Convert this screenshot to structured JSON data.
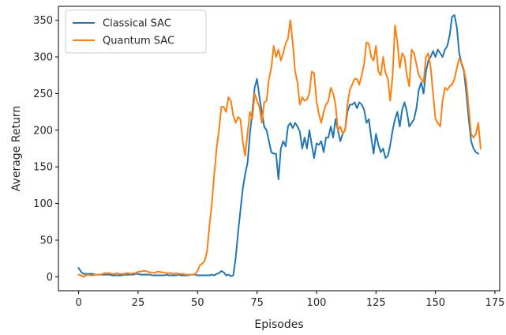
{
  "chart_data": {
    "type": "line",
    "xlabel": "Episodes",
    "ylabel": "Average Return",
    "xlim": [
      -8.5,
      177
    ],
    "ylim": [
      -19,
      369
    ],
    "xticks": [
      0,
      25,
      50,
      75,
      100,
      125,
      150,
      175
    ],
    "yticks": [
      0,
      50,
      100,
      150,
      200,
      250,
      300,
      350
    ],
    "legend_position": "top-left",
    "grid": false,
    "series": [
      {
        "name": "Classical SAC",
        "color": "#1f77b4",
        "points": [
          [
            0,
            12
          ],
          [
            1,
            7
          ],
          [
            2,
            4
          ],
          [
            3,
            4
          ],
          [
            4,
            4
          ],
          [
            5,
            4
          ],
          [
            6,
            4
          ],
          [
            7,
            3
          ],
          [
            8,
            3
          ],
          [
            9,
            3
          ],
          [
            10,
            3
          ],
          [
            11,
            3
          ],
          [
            12,
            3
          ],
          [
            13,
            3
          ],
          [
            14,
            2
          ],
          [
            15,
            2
          ],
          [
            16,
            2
          ],
          [
            17,
            2
          ],
          [
            18,
            2
          ],
          [
            19,
            3
          ],
          [
            20,
            3
          ],
          [
            21,
            3
          ],
          [
            22,
            3
          ],
          [
            23,
            3
          ],
          [
            24,
            4
          ],
          [
            25,
            4
          ],
          [
            26,
            3
          ],
          [
            27,
            3
          ],
          [
            28,
            3
          ],
          [
            29,
            3
          ],
          [
            30,
            3
          ],
          [
            31,
            2
          ],
          [
            32,
            2
          ],
          [
            33,
            2
          ],
          [
            34,
            2
          ],
          [
            35,
            2
          ],
          [
            36,
            2
          ],
          [
            37,
            3
          ],
          [
            38,
            2
          ],
          [
            39,
            2
          ],
          [
            40,
            2
          ],
          [
            41,
            2
          ],
          [
            42,
            3
          ],
          [
            43,
            2
          ],
          [
            44,
            2
          ],
          [
            45,
            2
          ],
          [
            46,
            2
          ],
          [
            47,
            3
          ],
          [
            48,
            3
          ],
          [
            49,
            3
          ],
          [
            50,
            2
          ],
          [
            51,
            2
          ],
          [
            52,
            2
          ],
          [
            53,
            2
          ],
          [
            54,
            2
          ],
          [
            55,
            2
          ],
          [
            56,
            3
          ],
          [
            57,
            2
          ],
          [
            58,
            4
          ],
          [
            59,
            5
          ],
          [
            60,
            8
          ],
          [
            61,
            6
          ],
          [
            62,
            2
          ],
          [
            63,
            3
          ],
          [
            64,
            1
          ],
          [
            65,
            2
          ],
          [
            66,
            25
          ],
          [
            67,
            60
          ],
          [
            68,
            90
          ],
          [
            69,
            120
          ],
          [
            70,
            140
          ],
          [
            71,
            155
          ],
          [
            72,
            195
          ],
          [
            73,
            225
          ],
          [
            74,
            258
          ],
          [
            75,
            270
          ],
          [
            76,
            245
          ],
          [
            77,
            225
          ],
          [
            78,
            205
          ],
          [
            79,
            200
          ],
          [
            80,
            185
          ],
          [
            81,
            170
          ],
          [
            82,
            168
          ],
          [
            83,
            168
          ],
          [
            84,
            133
          ],
          [
            85,
            175
          ],
          [
            86,
            185
          ],
          [
            87,
            178
          ],
          [
            88,
            205
          ],
          [
            89,
            210
          ],
          [
            90,
            203
          ],
          [
            91,
            210
          ],
          [
            92,
            205
          ],
          [
            93,
            198
          ],
          [
            94,
            175
          ],
          [
            95,
            190
          ],
          [
            96,
            175
          ],
          [
            97,
            200
          ],
          [
            98,
            180
          ],
          [
            99,
            162
          ],
          [
            100,
            182
          ],
          [
            101,
            180
          ],
          [
            102,
            185
          ],
          [
            103,
            170
          ],
          [
            104,
            190
          ],
          [
            105,
            190
          ],
          [
            106,
            205
          ],
          [
            107,
            190
          ],
          [
            108,
            215
          ],
          [
            109,
            200
          ],
          [
            110,
            185
          ],
          [
            111,
            195
          ],
          [
            112,
            200
          ],
          [
            113,
            225
          ],
          [
            114,
            235
          ],
          [
            115,
            235
          ],
          [
            116,
            238
          ],
          [
            117,
            230
          ],
          [
            118,
            238
          ],
          [
            119,
            235
          ],
          [
            120,
            228
          ],
          [
            121,
            210
          ],
          [
            122,
            215
          ],
          [
            123,
            190
          ],
          [
            124,
            168
          ],
          [
            125,
            195
          ],
          [
            126,
            180
          ],
          [
            127,
            170
          ],
          [
            128,
            175
          ],
          [
            129,
            162
          ],
          [
            130,
            165
          ],
          [
            131,
            180
          ],
          [
            132,
            200
          ],
          [
            133,
            215
          ],
          [
            134,
            225
          ],
          [
            135,
            205
          ],
          [
            136,
            228
          ],
          [
            137,
            238
          ],
          [
            138,
            225
          ],
          [
            139,
            205
          ],
          [
            140,
            210
          ],
          [
            141,
            215
          ],
          [
            142,
            230
          ],
          [
            143,
            255
          ],
          [
            144,
            265
          ],
          [
            145,
            250
          ],
          [
            146,
            280
          ],
          [
            147,
            295
          ],
          [
            148,
            300
          ],
          [
            149,
            308
          ],
          [
            150,
            300
          ],
          [
            151,
            310
          ],
          [
            152,
            305
          ],
          [
            153,
            300
          ],
          [
            154,
            310
          ],
          [
            155,
            315
          ],
          [
            156,
            330
          ],
          [
            157,
            355
          ],
          [
            158,
            357
          ],
          [
            159,
            340
          ],
          [
            160,
            305
          ],
          [
            161,
            290
          ],
          [
            162,
            280
          ],
          [
            163,
            250
          ],
          [
            164,
            215
          ],
          [
            165,
            185
          ],
          [
            166,
            175
          ],
          [
            167,
            170
          ],
          [
            168,
            168
          ]
        ]
      },
      {
        "name": "Quantum SAC",
        "color": "#ff7f0e",
        "points": [
          [
            0,
            3
          ],
          [
            1,
            2
          ],
          [
            2,
            0
          ],
          [
            3,
            2
          ],
          [
            4,
            3
          ],
          [
            5,
            2
          ],
          [
            6,
            2
          ],
          [
            7,
            3
          ],
          [
            8,
            3
          ],
          [
            9,
            3
          ],
          [
            10,
            4
          ],
          [
            11,
            5
          ],
          [
            12,
            5
          ],
          [
            13,
            5
          ],
          [
            14,
            4
          ],
          [
            15,
            4
          ],
          [
            16,
            5
          ],
          [
            17,
            4
          ],
          [
            18,
            4
          ],
          [
            19,
            4
          ],
          [
            20,
            5
          ],
          [
            21,
            5
          ],
          [
            22,
            4
          ],
          [
            23,
            5
          ],
          [
            24,
            5
          ],
          [
            25,
            7
          ],
          [
            26,
            7
          ],
          [
            27,
            8
          ],
          [
            28,
            8
          ],
          [
            29,
            7
          ],
          [
            30,
            6
          ],
          [
            31,
            6
          ],
          [
            32,
            5
          ],
          [
            33,
            7
          ],
          [
            34,
            7
          ],
          [
            35,
            6
          ],
          [
            36,
            6
          ],
          [
            37,
            5
          ],
          [
            38,
            5
          ],
          [
            39,
            5
          ],
          [
            40,
            4
          ],
          [
            41,
            5
          ],
          [
            42,
            4
          ],
          [
            43,
            4
          ],
          [
            44,
            4
          ],
          [
            45,
            3
          ],
          [
            46,
            3
          ],
          [
            47,
            3
          ],
          [
            48,
            3
          ],
          [
            49,
            4
          ],
          [
            50,
            8
          ],
          [
            51,
            16
          ],
          [
            52,
            18
          ],
          [
            53,
            22
          ],
          [
            54,
            35
          ],
          [
            55,
            70
          ],
          [
            56,
            100
          ],
          [
            57,
            140
          ],
          [
            58,
            175
          ],
          [
            59,
            200
          ],
          [
            60,
            232
          ],
          [
            61,
            232
          ],
          [
            62,
            225
          ],
          [
            63,
            245
          ],
          [
            64,
            240
          ],
          [
            65,
            220
          ],
          [
            66,
            210
          ],
          [
            67,
            218
          ],
          [
            68,
            215
          ],
          [
            69,
            185
          ],
          [
            70,
            165
          ],
          [
            71,
            195
          ],
          [
            72,
            225
          ],
          [
            73,
            215
          ],
          [
            74,
            250
          ],
          [
            75,
            240
          ],
          [
            76,
            232
          ],
          [
            77,
            210
          ],
          [
            78,
            238
          ],
          [
            79,
            240
          ],
          [
            80,
            270
          ],
          [
            81,
            285
          ],
          [
            82,
            315
          ],
          [
            83,
            300
          ],
          [
            84,
            310
          ],
          [
            85,
            295
          ],
          [
            86,
            305
          ],
          [
            87,
            318
          ],
          [
            88,
            325
          ],
          [
            89,
            350
          ],
          [
            90,
            320
          ],
          [
            91,
            280
          ],
          [
            92,
            265
          ],
          [
            93,
            235
          ],
          [
            94,
            245
          ],
          [
            95,
            240
          ],
          [
            96,
            242
          ],
          [
            97,
            250
          ],
          [
            98,
            280
          ],
          [
            99,
            278
          ],
          [
            100,
            240
          ],
          [
            101,
            222
          ],
          [
            102,
            210
          ],
          [
            103,
            225
          ],
          [
            104,
            235
          ],
          [
            105,
            240
          ],
          [
            106,
            258
          ],
          [
            107,
            250
          ],
          [
            108,
            235
          ],
          [
            109,
            200
          ],
          [
            110,
            205
          ],
          [
            111,
            195
          ],
          [
            112,
            200
          ],
          [
            113,
            235
          ],
          [
            114,
            255
          ],
          [
            115,
            262
          ],
          [
            116,
            270
          ],
          [
            117,
            270
          ],
          [
            118,
            262
          ],
          [
            119,
            275
          ],
          [
            120,
            290
          ],
          [
            121,
            320
          ],
          [
            122,
            318
          ],
          [
            123,
            300
          ],
          [
            124,
            295
          ],
          [
            125,
            315
          ],
          [
            126,
            280
          ],
          [
            127,
            275
          ],
          [
            128,
            300
          ],
          [
            129,
            278
          ],
          [
            130,
            270
          ],
          [
            131,
            240
          ],
          [
            132,
            275
          ],
          [
            133,
            343
          ],
          [
            134,
            320
          ],
          [
            135,
            285
          ],
          [
            136,
            305
          ],
          [
            137,
            300
          ],
          [
            138,
            275
          ],
          [
            139,
            260
          ],
          [
            140,
            310
          ],
          [
            141,
            305
          ],
          [
            142,
            290
          ],
          [
            143,
            275
          ],
          [
            144,
            270
          ],
          [
            145,
            265
          ],
          [
            146,
            300
          ],
          [
            147,
            305
          ],
          [
            148,
            285
          ],
          [
            149,
            250
          ],
          [
            150,
            215
          ],
          [
            151,
            210
          ],
          [
            152,
            205
          ],
          [
            153,
            240
          ],
          [
            154,
            258
          ],
          [
            155,
            255
          ],
          [
            156,
            260
          ],
          [
            157,
            262
          ],
          [
            158,
            270
          ],
          [
            159,
            285
          ],
          [
            160,
            298
          ],
          [
            161,
            292
          ],
          [
            162,
            282
          ],
          [
            163,
            265
          ],
          [
            164,
            230
          ],
          [
            165,
            195
          ],
          [
            166,
            190
          ],
          [
            167,
            195
          ],
          [
            168,
            210
          ],
          [
            169,
            175
          ]
        ]
      }
    ]
  }
}
